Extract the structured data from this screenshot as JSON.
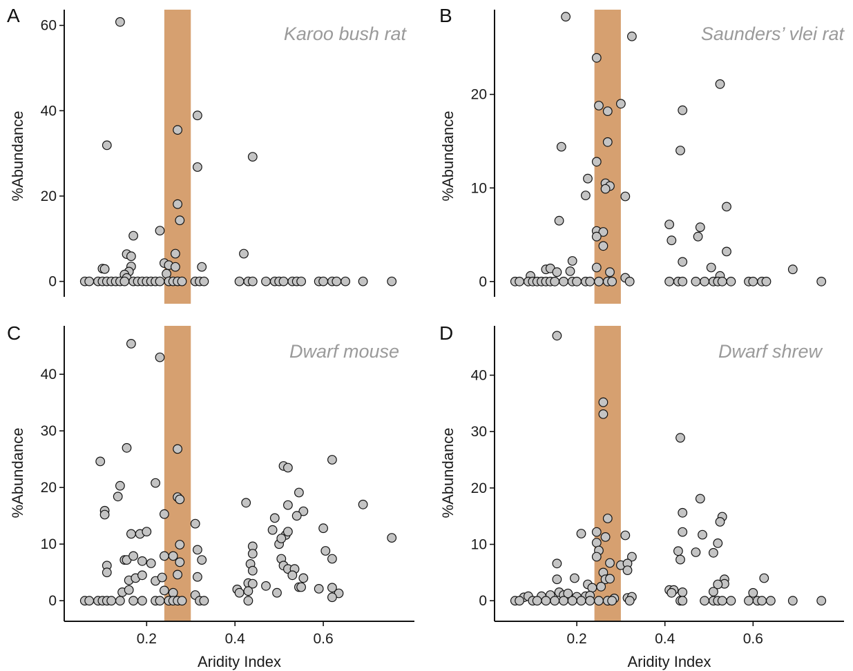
{
  "chart_data": [
    {
      "type": "scatter",
      "panel_label": "A",
      "title": "Karoo bush rat",
      "xlabel": "",
      "ylabel": "%Abundance",
      "xlim": [
        0.04,
        0.775
      ],
      "ylim": [
        -2,
        64
      ],
      "xticks": [],
      "yticks": [
        0,
        20,
        40,
        60
      ],
      "highlight_band": [
        0.24,
        0.3
      ],
      "colors": {
        "band": "#d6a070",
        "point_fill": "#c4c4c4",
        "point_edge": "#111111"
      },
      "points": [
        [
          0.14,
          60.8
        ],
        [
          0.11,
          31.9
        ],
        [
          0.315,
          38.9
        ],
        [
          0.27,
          35.5
        ],
        [
          0.315,
          26.8
        ],
        [
          0.44,
          29.2
        ],
        [
          0.27,
          18.1
        ],
        [
          0.275,
          14.3
        ],
        [
          0.23,
          11.9
        ],
        [
          0.17,
          10.7
        ],
        [
          0.155,
          6.4
        ],
        [
          0.165,
          5.9
        ],
        [
          0.265,
          6.5
        ],
        [
          0.42,
          6.5
        ],
        [
          0.24,
          4.3
        ],
        [
          0.25,
          3.8
        ],
        [
          0.165,
          3.5
        ],
        [
          0.265,
          3.4
        ],
        [
          0.325,
          3.4
        ],
        [
          0.1,
          3.0
        ],
        [
          0.105,
          2.9
        ],
        [
          0.16,
          2.3
        ],
        [
          0.15,
          1.6
        ],
        [
          0.155,
          0.8
        ],
        [
          0.245,
          1.8
        ],
        [
          0.06,
          0
        ],
        [
          0.07,
          0
        ],
        [
          0.09,
          0
        ],
        [
          0.1,
          0
        ],
        [
          0.11,
          0
        ],
        [
          0.12,
          0
        ],
        [
          0.13,
          0
        ],
        [
          0.14,
          0
        ],
        [
          0.15,
          0
        ],
        [
          0.17,
          0
        ],
        [
          0.18,
          0
        ],
        [
          0.19,
          0
        ],
        [
          0.2,
          0
        ],
        [
          0.21,
          0
        ],
        [
          0.22,
          0
        ],
        [
          0.23,
          0
        ],
        [
          0.25,
          0
        ],
        [
          0.26,
          0
        ],
        [
          0.27,
          0
        ],
        [
          0.28,
          0
        ],
        [
          0.31,
          0
        ],
        [
          0.32,
          0
        ],
        [
          0.33,
          0
        ],
        [
          0.41,
          0
        ],
        [
          0.43,
          0
        ],
        [
          0.44,
          0
        ],
        [
          0.47,
          0
        ],
        [
          0.49,
          0
        ],
        [
          0.5,
          0
        ],
        [
          0.51,
          0
        ],
        [
          0.53,
          0
        ],
        [
          0.54,
          0
        ],
        [
          0.55,
          0
        ],
        [
          0.59,
          0
        ],
        [
          0.6,
          0
        ],
        [
          0.62,
          0
        ],
        [
          0.63,
          0
        ],
        [
          0.65,
          0
        ],
        [
          0.69,
          0
        ],
        [
          0.755,
          0
        ]
      ]
    },
    {
      "type": "scatter",
      "panel_label": "B",
      "title": "Saunders’ vlei rat",
      "xlabel": "",
      "ylabel": "%Abundance",
      "xlim": [
        0.04,
        0.775
      ],
      "ylim": [
        -0.9,
        29.2
      ],
      "xticks": [],
      "yticks": [
        0,
        10,
        20
      ],
      "highlight_band": [
        0.24,
        0.3
      ],
      "colors": {
        "band": "#d6a070",
        "point_fill": "#c4c4c4",
        "point_edge": "#111111"
      },
      "points": [
        [
          0.175,
          28.3
        ],
        [
          0.325,
          26.2
        ],
        [
          0.245,
          23.9
        ],
        [
          0.25,
          18.8
        ],
        [
          0.3,
          19.0
        ],
        [
          0.27,
          18.2
        ],
        [
          0.44,
          18.3
        ],
        [
          0.525,
          21.1
        ],
        [
          0.165,
          14.4
        ],
        [
          0.27,
          14.9
        ],
        [
          0.435,
          14.0
        ],
        [
          0.245,
          12.8
        ],
        [
          0.225,
          11.0
        ],
        [
          0.265,
          10.5
        ],
        [
          0.275,
          10.2
        ],
        [
          0.265,
          9.9
        ],
        [
          0.22,
          9.2
        ],
        [
          0.31,
          9.1
        ],
        [
          0.54,
          8.0
        ],
        [
          0.16,
          6.5
        ],
        [
          0.41,
          6.1
        ],
        [
          0.48,
          5.8
        ],
        [
          0.245,
          5.4
        ],
        [
          0.26,
          5.3
        ],
        [
          0.245,
          4.8
        ],
        [
          0.415,
          4.4
        ],
        [
          0.475,
          4.8
        ],
        [
          0.26,
          3.8
        ],
        [
          0.54,
          3.2
        ],
        [
          0.19,
          2.2
        ],
        [
          0.44,
          2.1
        ],
        [
          0.245,
          1.5
        ],
        [
          0.505,
          1.5
        ],
        [
          0.69,
          1.3
        ],
        [
          0.13,
          1.3
        ],
        [
          0.14,
          1.4
        ],
        [
          0.155,
          1.0
        ],
        [
          0.185,
          1.1
        ],
        [
          0.275,
          1.0
        ],
        [
          0.095,
          0.6
        ],
        [
          0.31,
          0.4
        ],
        [
          0.525,
          0.6
        ],
        [
          0.06,
          0
        ],
        [
          0.07,
          0
        ],
        [
          0.09,
          0
        ],
        [
          0.1,
          0
        ],
        [
          0.11,
          0
        ],
        [
          0.12,
          0
        ],
        [
          0.13,
          0
        ],
        [
          0.14,
          0
        ],
        [
          0.15,
          0
        ],
        [
          0.17,
          0
        ],
        [
          0.19,
          0
        ],
        [
          0.2,
          0
        ],
        [
          0.22,
          0
        ],
        [
          0.23,
          0
        ],
        [
          0.25,
          0
        ],
        [
          0.27,
          0
        ],
        [
          0.28,
          0
        ],
        [
          0.32,
          0
        ],
        [
          0.41,
          0
        ],
        [
          0.43,
          0
        ],
        [
          0.44,
          0
        ],
        [
          0.47,
          0
        ],
        [
          0.49,
          0
        ],
        [
          0.51,
          0
        ],
        [
          0.52,
          0
        ],
        [
          0.53,
          0
        ],
        [
          0.55,
          0
        ],
        [
          0.59,
          0
        ],
        [
          0.6,
          0
        ],
        [
          0.62,
          0
        ],
        [
          0.63,
          0
        ],
        [
          0.755,
          0
        ]
      ]
    },
    {
      "type": "scatter",
      "panel_label": "C",
      "title": "Dwarf mouse",
      "xlabel": "Aridity Index",
      "ylabel": "%Abundance",
      "xlim": [
        0.04,
        0.775
      ],
      "ylim": [
        -1.2,
        48.8
      ],
      "xticks": [
        0.2,
        0.4,
        0.6
      ],
      "yticks": [
        0,
        10,
        20,
        30,
        40
      ],
      "highlight_band": [
        0.24,
        0.3
      ],
      "colors": {
        "band": "#d6a070",
        "point_fill": "#c4c4c4",
        "point_edge": "#111111"
      },
      "points": [
        [
          0.165,
          45.4
        ],
        [
          0.23,
          43.0
        ],
        [
          0.155,
          27.0
        ],
        [
          0.27,
          26.8
        ],
        [
          0.095,
          24.6
        ],
        [
          0.62,
          24.9
        ],
        [
          0.51,
          23.8
        ],
        [
          0.52,
          23.5
        ],
        [
          0.22,
          20.8
        ],
        [
          0.14,
          20.3
        ],
        [
          0.135,
          18.4
        ],
        [
          0.27,
          18.3
        ],
        [
          0.275,
          17.9
        ],
        [
          0.425,
          17.3
        ],
        [
          0.69,
          17.0
        ],
        [
          0.105,
          15.9
        ],
        [
          0.105,
          15.2
        ],
        [
          0.24,
          15.3
        ],
        [
          0.545,
          19.1
        ],
        [
          0.555,
          15.8
        ],
        [
          0.54,
          15.0
        ],
        [
          0.52,
          16.9
        ],
        [
          0.49,
          14.6
        ],
        [
          0.31,
          13.6
        ],
        [
          0.6,
          12.8
        ],
        [
          0.165,
          11.8
        ],
        [
          0.185,
          11.8
        ],
        [
          0.2,
          12.2
        ],
        [
          0.485,
          12.5
        ],
        [
          0.515,
          11.6
        ],
        [
          0.52,
          12.2
        ],
        [
          0.755,
          11.1
        ],
        [
          0.5,
          10.0
        ],
        [
          0.505,
          11.0
        ],
        [
          0.44,
          9.6
        ],
        [
          0.275,
          9.9
        ],
        [
          0.315,
          9.0
        ],
        [
          0.605,
          8.8
        ],
        [
          0.44,
          8.3
        ],
        [
          0.11,
          6.2
        ],
        [
          0.11,
          5.0
        ],
        [
          0.15,
          7.2
        ],
        [
          0.155,
          7.2
        ],
        [
          0.17,
          7.9
        ],
        [
          0.19,
          7.0
        ],
        [
          0.21,
          6.6
        ],
        [
          0.24,
          7.9
        ],
        [
          0.26,
          7.9
        ],
        [
          0.275,
          6.8
        ],
        [
          0.325,
          7.2
        ],
        [
          0.62,
          7.4
        ],
        [
          0.505,
          7.4
        ],
        [
          0.435,
          6.5
        ],
        [
          0.51,
          6.2
        ],
        [
          0.52,
          5.6
        ],
        [
          0.535,
          5.6
        ],
        [
          0.44,
          5.3
        ],
        [
          0.16,
          3.6
        ],
        [
          0.175,
          4.0
        ],
        [
          0.19,
          4.5
        ],
        [
          0.22,
          3.5
        ],
        [
          0.235,
          4.1
        ],
        [
          0.27,
          4.6
        ],
        [
          0.315,
          4.2
        ],
        [
          0.53,
          4.5
        ],
        [
          0.555,
          4.0
        ],
        [
          0.43,
          3.1
        ],
        [
          0.44,
          3.0
        ],
        [
          0.47,
          2.6
        ],
        [
          0.545,
          2.4
        ],
        [
          0.55,
          2.4
        ],
        [
          0.59,
          2.1
        ],
        [
          0.62,
          2.3
        ],
        [
          0.635,
          1.3
        ],
        [
          0.405,
          2.0
        ],
        [
          0.41,
          1.4
        ],
        [
          0.43,
          1.7
        ],
        [
          0.495,
          1.4
        ],
        [
          0.62,
          0.6
        ],
        [
          0.24,
          1.8
        ],
        [
          0.26,
          1.4
        ],
        [
          0.145,
          1.5
        ],
        [
          0.16,
          1.9
        ],
        [
          0.31,
          1.0
        ],
        [
          0.06,
          0
        ],
        [
          0.07,
          0
        ],
        [
          0.09,
          0
        ],
        [
          0.1,
          0
        ],
        [
          0.11,
          0
        ],
        [
          0.12,
          0
        ],
        [
          0.14,
          0
        ],
        [
          0.17,
          0
        ],
        [
          0.19,
          0
        ],
        [
          0.22,
          0
        ],
        [
          0.23,
          0
        ],
        [
          0.25,
          0
        ],
        [
          0.26,
          0
        ],
        [
          0.27,
          0
        ],
        [
          0.28,
          0
        ],
        [
          0.32,
          0
        ],
        [
          0.33,
          0
        ],
        [
          0.43,
          0
        ]
      ]
    },
    {
      "type": "scatter",
      "panel_label": "D",
      "title": "Dwarf shrew",
      "xlabel": "Aridity Index",
      "ylabel": "%Abundance",
      "xlim": [
        0.04,
        0.775
      ],
      "ylim": [
        -1.2,
        49.0
      ],
      "xticks": [
        0.2,
        0.4,
        0.6
      ],
      "yticks": [
        0,
        10,
        20,
        30,
        40
      ],
      "highlight_band": [
        0.24,
        0.3
      ],
      "colors": {
        "band": "#d6a070",
        "point_fill": "#c4c4c4",
        "point_edge": "#111111"
      },
      "points": [
        [
          0.155,
          47.0
        ],
        [
          0.26,
          35.2
        ],
        [
          0.26,
          33.1
        ],
        [
          0.435,
          28.9
        ],
        [
          0.48,
          18.1
        ],
        [
          0.44,
          15.6
        ],
        [
          0.27,
          14.6
        ],
        [
          0.53,
          14.9
        ],
        [
          0.525,
          14.0
        ],
        [
          0.44,
          12.2
        ],
        [
          0.21,
          11.9
        ],
        [
          0.245,
          12.2
        ],
        [
          0.31,
          11.6
        ],
        [
          0.485,
          11.7
        ],
        [
          0.245,
          10.3
        ],
        [
          0.265,
          11.3
        ],
        [
          0.52,
          10.2
        ],
        [
          0.25,
          8.9
        ],
        [
          0.245,
          7.8
        ],
        [
          0.325,
          7.8
        ],
        [
          0.43,
          8.8
        ],
        [
          0.47,
          8.6
        ],
        [
          0.51,
          8.5
        ],
        [
          0.435,
          7.3
        ],
        [
          0.155,
          6.6
        ],
        [
          0.275,
          6.7
        ],
        [
          0.3,
          6.3
        ],
        [
          0.315,
          6.6
        ],
        [
          0.315,
          5.4
        ],
        [
          0.26,
          5.0
        ],
        [
          0.265,
          3.8
        ],
        [
          0.275,
          3.9
        ],
        [
          0.535,
          3.8
        ],
        [
          0.535,
          3.0
        ],
        [
          0.155,
          3.8
        ],
        [
          0.195,
          4.0
        ],
        [
          0.625,
          4.0
        ],
        [
          0.225,
          2.9
        ],
        [
          0.235,
          2.3
        ],
        [
          0.255,
          2.5
        ],
        [
          0.51,
          1.6
        ],
        [
          0.52,
          2.9
        ],
        [
          0.6,
          1.4
        ],
        [
          0.41,
          1.9
        ],
        [
          0.42,
          1.9
        ],
        [
          0.415,
          1.4
        ],
        [
          0.44,
          1.5
        ],
        [
          0.08,
          0.6
        ],
        [
          0.09,
          0.8
        ],
        [
          0.12,
          0.8
        ],
        [
          0.14,
          1.0
        ],
        [
          0.16,
          1.5
        ],
        [
          0.17,
          1.0
        ],
        [
          0.18,
          1.3
        ],
        [
          0.2,
          0.7
        ],
        [
          0.22,
          0.8
        ],
        [
          0.23,
          0.9
        ],
        [
          0.285,
          0.4
        ],
        [
          0.315,
          0.5
        ],
        [
          0.325,
          0.7
        ],
        [
          0.06,
          0
        ],
        [
          0.07,
          0
        ],
        [
          0.1,
          0
        ],
        [
          0.11,
          0
        ],
        [
          0.13,
          0
        ],
        [
          0.15,
          0
        ],
        [
          0.17,
          0
        ],
        [
          0.19,
          0
        ],
        [
          0.21,
          0
        ],
        [
          0.23,
          0
        ],
        [
          0.25,
          0
        ],
        [
          0.27,
          0
        ],
        [
          0.28,
          0
        ],
        [
          0.32,
          0
        ],
        [
          0.435,
          0
        ],
        [
          0.44,
          0
        ],
        [
          0.49,
          0
        ],
        [
          0.51,
          0
        ],
        [
          0.52,
          0
        ],
        [
          0.53,
          0
        ],
        [
          0.55,
          0
        ],
        [
          0.59,
          0
        ],
        [
          0.61,
          0
        ],
        [
          0.62,
          0
        ],
        [
          0.64,
          0
        ],
        [
          0.69,
          0
        ],
        [
          0.755,
          0
        ]
      ]
    }
  ]
}
